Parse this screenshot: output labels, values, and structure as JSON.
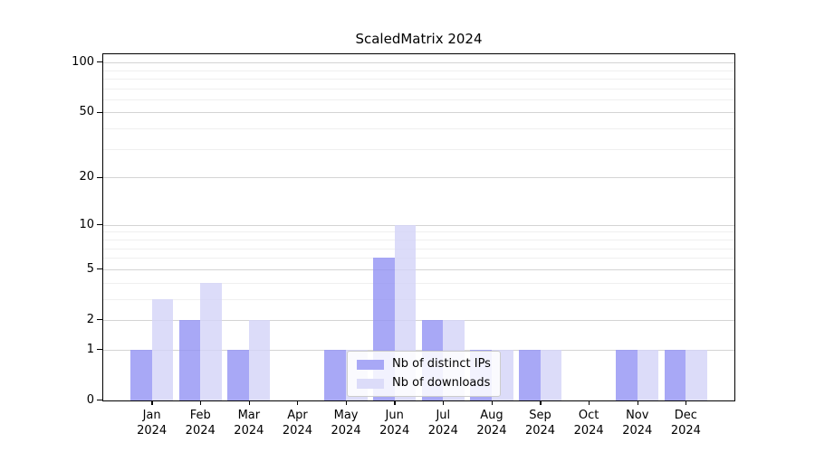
{
  "chart_data": {
    "type": "bar",
    "title": "ScaledMatrix 2024",
    "x": [
      "Jan",
      "Feb",
      "Mar",
      "Apr",
      "May",
      "Jun",
      "Jul",
      "Aug",
      "Sep",
      "Oct",
      "Nov",
      "Dec"
    ],
    "x_year": "2024",
    "series": [
      {
        "name": "Nb of distinct IPs",
        "color": "#a8a8f6",
        "values": [
          1,
          2,
          1,
          0,
          1,
          6,
          2,
          1,
          1,
          0,
          1,
          1
        ]
      },
      {
        "name": "Nb of downloads",
        "color": "#dcdcf9",
        "values": [
          3,
          4,
          2,
          0,
          1,
          10,
          2,
          1,
          1,
          0,
          1,
          1
        ]
      }
    ],
    "y_ticks": [
      0,
      1,
      2,
      5,
      10,
      20,
      50,
      100
    ],
    "y_minor_ticks": [
      3,
      4,
      6,
      7,
      8,
      9,
      30,
      40,
      60,
      70,
      80,
      90
    ],
    "y_scale": "log1p",
    "y_axis_max": 112,
    "ylim": [
      0,
      112
    ],
    "grid": "horizontal-major-and-minor",
    "legend_position": "lower-center"
  },
  "colors": {
    "grid_major": "#d4d4d4",
    "grid_minor": "#efefef",
    "spine": "#000000",
    "text": "#000000",
    "legend_border": "#cccccc"
  }
}
